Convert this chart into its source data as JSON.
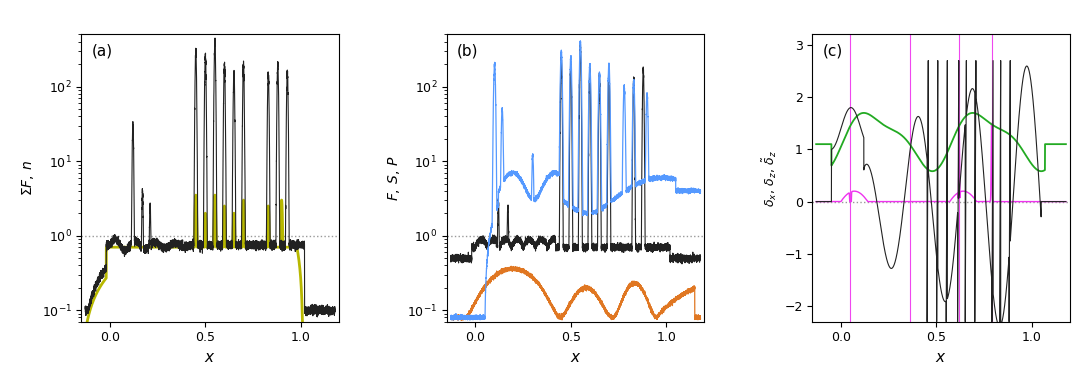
{
  "panel_a_label": "(a)",
  "panel_b_label": "(b)",
  "panel_c_label": "(c)",
  "ylabel_a": "$\\Sigma F,\\, n$",
  "ylabel_b": "$F,\\, S,\\, P$",
  "ylabel_c": "$\\delta_x,\\, \\delta_z,\\, \\tilde{\\delta}_z$",
  "xlabel": "$x$",
  "xlim": [
    -0.15,
    1.2
  ],
  "xticks": [
    0,
    0.5,
    1
  ],
  "ylim_ab": [
    0.07,
    500
  ],
  "ylim_c": [
    -2.3,
    3.2
  ],
  "yticks_c": [
    -2,
    -1,
    0,
    1,
    2,
    3
  ],
  "color_black": "#222222",
  "color_yellow": "#b8b800",
  "color_blue": "#5599ff",
  "color_orange": "#e07722",
  "color_green": "#22aa22",
  "color_magenta": "#ee33ee",
  "color_gray_dotted": "#999999",
  "figsize": [
    10.86,
    3.83
  ],
  "dpi": 100
}
